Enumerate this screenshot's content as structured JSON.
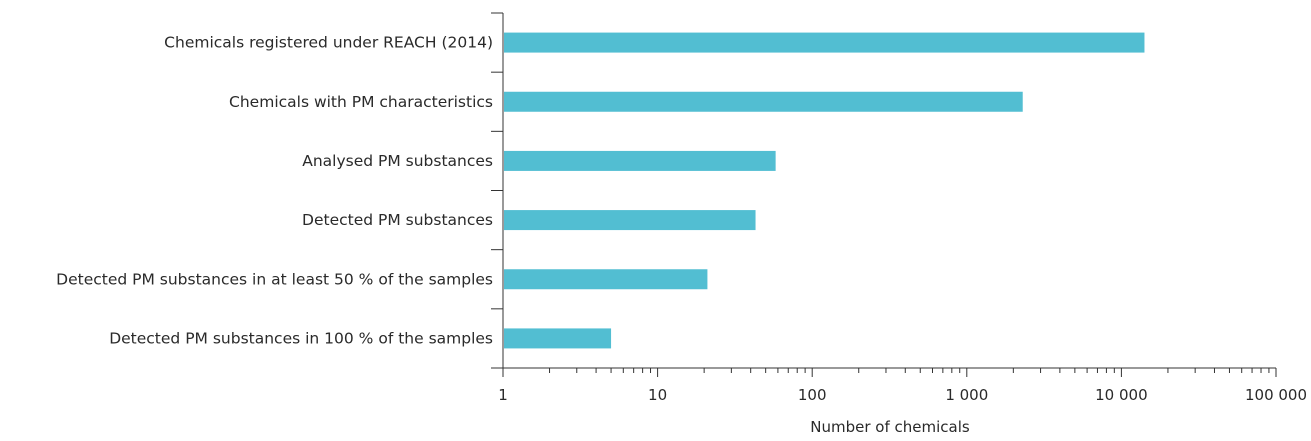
{
  "chart_data": {
    "type": "bar",
    "orientation": "horizontal",
    "title": "",
    "categories": [
      "Chemicals registered under REACH (2014)",
      "Chemicals with PM characteristics",
      "Analysed PM substances",
      "Detected PM substances",
      "Detected PM substances in at least 50 % of the samples",
      "Detected PM substances in 100 % of the samples"
    ],
    "values": [
      14100,
      2300,
      58,
      43,
      21,
      5
    ],
    "xlabel": "Number of chemicals",
    "ylabel": "",
    "xscale": "log",
    "xlim": [
      1,
      100000
    ],
    "x_ticks": [
      1,
      10,
      100,
      1000,
      10000,
      100000
    ],
    "x_tick_labels": [
      "1",
      "10",
      "100",
      "1 000",
      "10 000",
      "100 000"
    ],
    "grid": false,
    "legend": "none",
    "bar_color": "#52bed2"
  }
}
